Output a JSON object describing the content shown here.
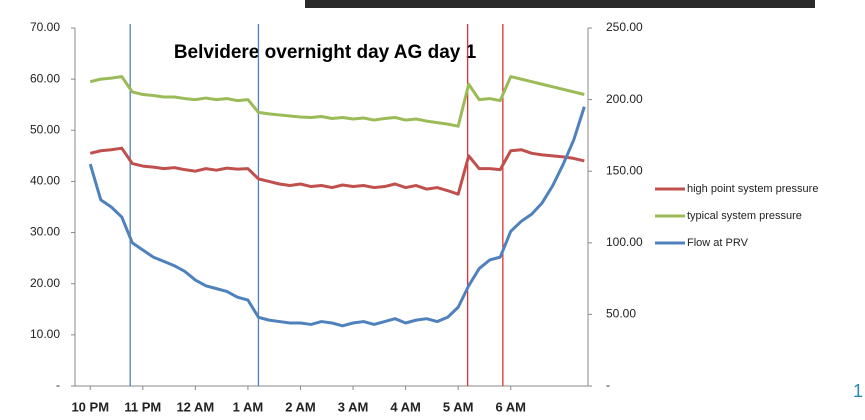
{
  "chart_data": {
    "type": "line",
    "title": "Belvidere overnight day AG day 1",
    "x": [
      0,
      0.2,
      0.4,
      0.6,
      0.8,
      1.0,
      1.2,
      1.4,
      1.6,
      1.8,
      2.0,
      2.2,
      2.4,
      2.6,
      2.8,
      3.0,
      3.2,
      3.4,
      3.6,
      3.8,
      4.0,
      4.2,
      4.4,
      4.6,
      4.8,
      5.0,
      5.2,
      5.4,
      5.6,
      5.8,
      6.0,
      6.2,
      6.4,
      6.6,
      6.8,
      7.0,
      7.2,
      7.4,
      7.6,
      7.8,
      8.0,
      8.2,
      8.4,
      8.6,
      8.8,
      9.0,
      9.2,
      9.4
    ],
    "series": [
      {
        "name": "high point system pressure",
        "color": "#c0504d",
        "values": [
          45.5,
          46,
          46.2,
          46.5,
          43.5,
          43,
          42.8,
          42.5,
          42.7,
          42.3,
          42,
          42.5,
          42.2,
          42.6,
          42.4,
          42.5,
          40.5,
          40,
          39.5,
          39.2,
          39.5,
          39,
          39.2,
          38.8,
          39.3,
          39,
          39.2,
          38.8,
          39,
          39.5,
          38.8,
          39.2,
          38.5,
          38.8,
          38.2,
          37.5,
          45,
          42.5,
          42.5,
          42.3,
          46,
          46.2,
          45.5,
          45.2,
          45,
          44.8,
          44.5,
          44
        ]
      },
      {
        "name": "typical system pressure",
        "color": "#9bbb59",
        "values": [
          59.5,
          60,
          60.2,
          60.5,
          57.5,
          57,
          56.8,
          56.5,
          56.5,
          56.2,
          56,
          56.3,
          56,
          56.2,
          55.8,
          56,
          53.5,
          53.2,
          53,
          52.8,
          52.6,
          52.5,
          52.7,
          52.3,
          52.5,
          52.2,
          52.4,
          52,
          52.3,
          52.5,
          52,
          52.2,
          51.8,
          51.5,
          51.2,
          50.8,
          59,
          56,
          56.2,
          55.8,
          60.5,
          60,
          59.5,
          59,
          58.5,
          58,
          57.5,
          57
        ]
      },
      {
        "name": "Flow at PRV",
        "color": "#4f81bd",
        "axis": "y2",
        "values": [
          155,
          130,
          125,
          118,
          100,
          95,
          90,
          87,
          84,
          80,
          74,
          70,
          68,
          66,
          62,
          60,
          48,
          46,
          45,
          44,
          44,
          43,
          45,
          44,
          42,
          44,
          45,
          43,
          45,
          47,
          44,
          46,
          47,
          45,
          48,
          55,
          70,
          82,
          88,
          90,
          108,
          115,
          120,
          128,
          140,
          155,
          172,
          195
        ]
      }
    ],
    "reference_lines": [
      {
        "x": 0.76,
        "color": "#4f81bd"
      },
      {
        "x": 3.2,
        "color": "#4f81bd"
      },
      {
        "x": 7.18,
        "color": "#e03030"
      },
      {
        "x": 7.85,
        "color": "#e03030"
      }
    ],
    "xlim": [
      -0.29,
      9.47
    ],
    "xticks": [
      {
        "value": 0,
        "label": "10 PM"
      },
      {
        "value": 1,
        "label": "11 PM"
      },
      {
        "value": 2,
        "label": "12 AM"
      },
      {
        "value": 3,
        "label": "1 AM"
      },
      {
        "value": 4,
        "label": "2 AM"
      },
      {
        "value": 5,
        "label": "3 AM"
      },
      {
        "value": 6,
        "label": "4 AM"
      },
      {
        "value": 7,
        "label": "5 AM"
      },
      {
        "value": 8,
        "label": "6 AM"
      }
    ],
    "ylim": [
      0,
      70
    ],
    "yticks": [
      {
        "value": 0,
        "label": "-"
      },
      {
        "value": 10,
        "label": "10.00"
      },
      {
        "value": 20,
        "label": "20.00"
      },
      {
        "value": 30,
        "label": "30.00"
      },
      {
        "value": 40,
        "label": "40.00"
      },
      {
        "value": 50,
        "label": "50.00"
      },
      {
        "value": 60,
        "label": "60.00"
      },
      {
        "value": 70,
        "label": "70.00"
      }
    ],
    "y2lim": [
      0,
      250
    ],
    "y2ticks": [
      {
        "value": 0,
        "label": "-"
      },
      {
        "value": 50,
        "label": "50.00"
      },
      {
        "value": 100,
        "label": "100.00"
      },
      {
        "value": 150,
        "label": "150.00"
      },
      {
        "value": 200,
        "label": "200.00"
      },
      {
        "value": 250,
        "label": "250.00"
      }
    ],
    "legend": "right"
  },
  "slide_number": "1"
}
